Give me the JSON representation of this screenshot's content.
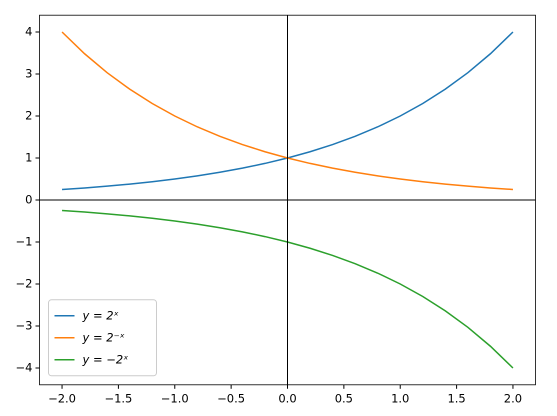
{
  "chart_data": {
    "type": "line",
    "x": [
      -2,
      -1.8,
      -1.6,
      -1.4,
      -1.2,
      -1,
      -0.8,
      -0.6,
      -0.4,
      -0.2,
      0,
      0.2,
      0.4,
      0.6,
      0.8,
      1,
      1.2,
      1.4,
      1.6,
      1.8,
      2
    ],
    "series": [
      {
        "name": "y = 2ˣ",
        "color": "#1f77b4",
        "values": [
          0.25,
          0.287,
          0.33,
          0.379,
          0.435,
          0.5,
          0.574,
          0.66,
          0.758,
          0.871,
          1,
          1.149,
          1.32,
          1.516,
          1.741,
          2,
          2.297,
          2.639,
          3.031,
          3.482,
          4
        ]
      },
      {
        "name": "y = 2⁻ˣ",
        "color": "#ff7f0e",
        "values": [
          4,
          3.482,
          3.031,
          2.639,
          2.297,
          2,
          1.741,
          1.516,
          1.32,
          1.149,
          1,
          0.871,
          0.758,
          0.66,
          0.574,
          0.5,
          0.435,
          0.379,
          0.33,
          0.287,
          0.25
        ]
      },
      {
        "name": "y = −2ˣ",
        "color": "#2ca02c",
        "values": [
          -0.25,
          -0.287,
          -0.33,
          -0.379,
          -0.435,
          -0.5,
          -0.574,
          -0.66,
          -0.758,
          -0.871,
          -1,
          -1.149,
          -1.32,
          -1.516,
          -1.741,
          -2,
          -2.297,
          -2.639,
          -3.031,
          -3.482,
          -4
        ]
      }
    ],
    "xlim": [
      -2.2,
      2.2
    ],
    "ylim": [
      -4.4,
      4.4
    ],
    "xticks": [
      {
        "value": -2,
        "label": "−2.0"
      },
      {
        "value": -1.5,
        "label": "−1.5"
      },
      {
        "value": -1,
        "label": "−1.0"
      },
      {
        "value": -0.5,
        "label": "−0.5"
      },
      {
        "value": 0,
        "label": "0.0"
      },
      {
        "value": 0.5,
        "label": "0.5"
      },
      {
        "value": 1,
        "label": "1.0"
      },
      {
        "value": 1.5,
        "label": "1.5"
      },
      {
        "value": 2,
        "label": "2.0"
      }
    ],
    "yticks": [
      {
        "value": -4,
        "label": "−4"
      },
      {
        "value": -3,
        "label": "−3"
      },
      {
        "value": -2,
        "label": "−2"
      },
      {
        "value": -1,
        "label": "−1"
      },
      0,
      1,
      2,
      3,
      4
    ],
    "axhline": 0,
    "axvline": 0,
    "legend": "lower left",
    "grid": false
  }
}
